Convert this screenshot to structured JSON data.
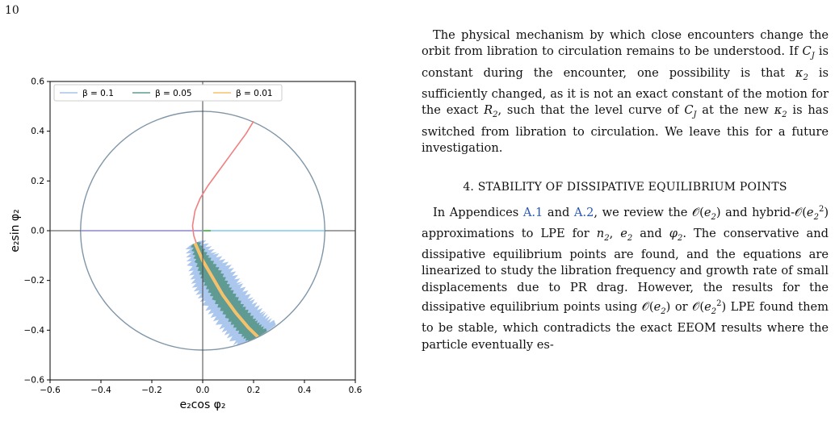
{
  "page_number": "10",
  "chart_data": {
    "type": "scatter",
    "xlabel": "e₂cos φ₂",
    "ylabel": "e₂sin φ₂",
    "xlim": [
      -0.6,
      0.6
    ],
    "ylim": [
      -0.6,
      0.6
    ],
    "x_ticks": [
      "−0.6",
      "−0.4",
      "−0.2",
      "0.0",
      "0.2",
      "0.4",
      "0.6"
    ],
    "y_ticks": [
      "−0.6",
      "−0.4",
      "−0.2",
      "0.0",
      "0.2",
      "0.4",
      "0.6"
    ],
    "legend": {
      "placement": "top-left",
      "entries": [
        {
          "label": "β = 0.1",
          "color": "#a8c4ec"
        },
        {
          "label": "β = 0.05",
          "color": "#5f9b93"
        },
        {
          "label": "β = 0.01",
          "color": "#f5c26b"
        }
      ]
    },
    "circle_radius": 0.48,
    "circle_color": "#7f96a8",
    "trajectory_color": "#f08080",
    "trajectory": [
      [
        0.2,
        0.44
      ],
      [
        0.17,
        0.39
      ],
      [
        0.12,
        0.32
      ],
      [
        0.07,
        0.25
      ],
      [
        0.02,
        0.18
      ],
      [
        -0.01,
        0.13
      ],
      [
        -0.03,
        0.08
      ],
      [
        -0.04,
        0.02
      ],
      [
        -0.035,
        -0.02
      ],
      [
        -0.025,
        -0.05
      ]
    ],
    "band_center": [
      [
        -0.03,
        -0.05
      ],
      [
        0.0,
        -0.12
      ],
      [
        0.04,
        -0.19
      ],
      [
        0.08,
        -0.26
      ],
      [
        0.13,
        -0.33
      ],
      [
        0.18,
        -0.39
      ],
      [
        0.22,
        -0.43
      ]
    ],
    "axis_lines": {
      "left_color": "#8b84e6",
      "right_color": "#7ec8f0",
      "marker_color": "#5cc05c"
    }
  },
  "text": {
    "para1": [
      {
        "t": "The physical mechanism by which close encounters change the orbit from libration to circulation remains to be understood. If "
      },
      {
        "m": "C"
      },
      {
        "s": "J"
      },
      {
        "t": " is constant during the encounter, one possibility is that "
      },
      {
        "m": "κ"
      },
      {
        "s": "2"
      },
      {
        "t": " is sufficiently changed, as it is not an exact constant of the motion for the exact "
      },
      {
        "m": "R"
      },
      {
        "s": "2"
      },
      {
        "t": ", such that the level curve of "
      },
      {
        "m": "C"
      },
      {
        "s": "J"
      },
      {
        "t": " at the new "
      },
      {
        "m": "κ"
      },
      {
        "s": "2"
      },
      {
        "t": " is has switched from libration to circulation. We leave this for a future investigation."
      }
    ],
    "section_heading": "4. STABILITY OF DISSIPATIVE EQUILIBRIUM POINTS",
    "para2": [
      {
        "t": "In Appendices "
      },
      {
        "r": "A.1"
      },
      {
        "t": " and "
      },
      {
        "r": "A.2"
      },
      {
        "t": ", we review the 𝒪("
      },
      {
        "m": "e"
      },
      {
        "s": "2"
      },
      {
        "t": ") and hybrid-𝒪("
      },
      {
        "m": "e"
      },
      {
        "s": "2"
      },
      {
        "p": "2"
      },
      {
        "t": ") approximations to LPE for "
      },
      {
        "m": "n"
      },
      {
        "s": "2"
      },
      {
        "t": ", "
      },
      {
        "m": "e"
      },
      {
        "s": "2"
      },
      {
        "t": " and "
      },
      {
        "m": "φ"
      },
      {
        "s": "2"
      },
      {
        "t": ". The conservative and dissipative equilibrium points are found, and the equations are linearized to study the libration frequency and growth rate of small displacements due to PR drag. However, the results for the dissipative equilibrium points using 𝒪("
      },
      {
        "m": "e"
      },
      {
        "s": "2"
      },
      {
        "t": ") or 𝒪("
      },
      {
        "m": "e"
      },
      {
        "s": "2"
      },
      {
        "p": "2"
      },
      {
        "t": ") LPE found them to be stable, which contradicts the exact EEOM results where the particle eventually es-"
      }
    ]
  }
}
